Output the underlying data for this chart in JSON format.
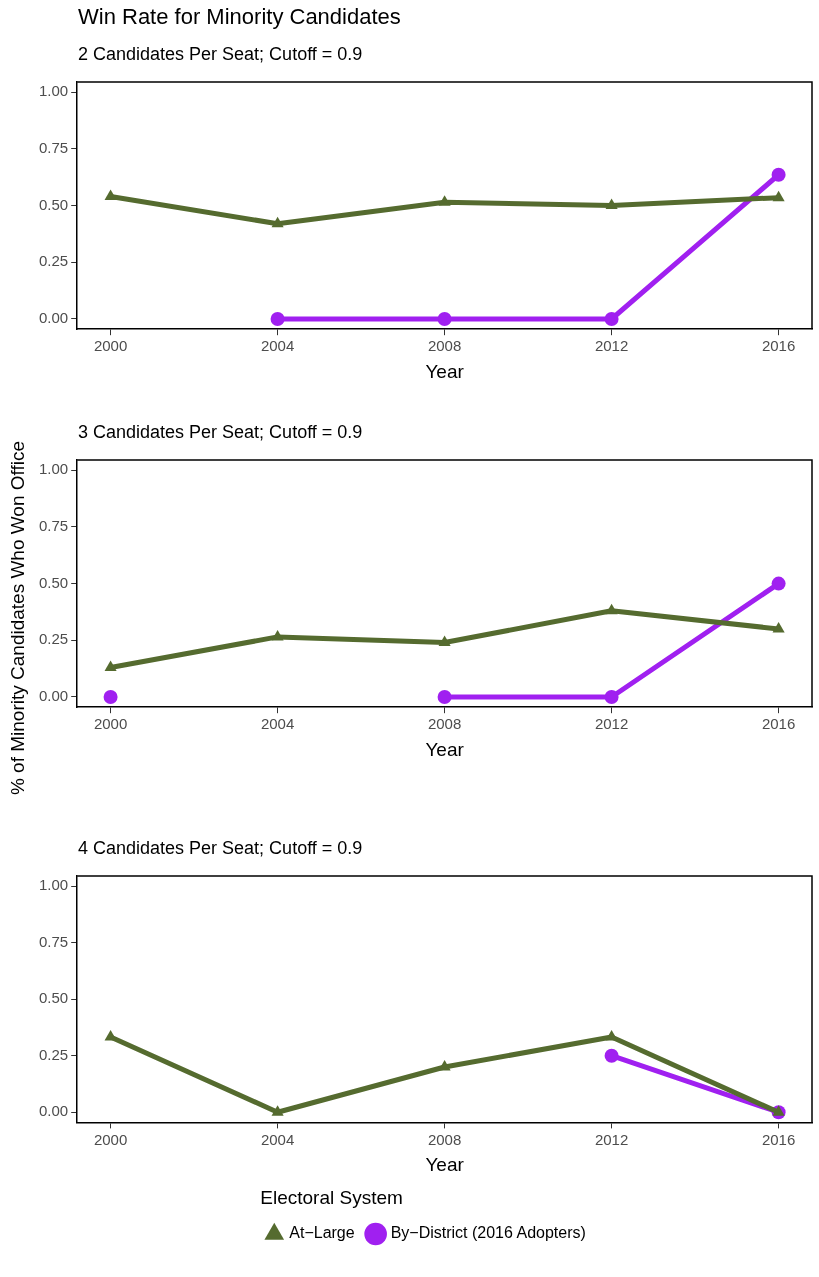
{
  "chart_data": [
    {
      "type": "line",
      "title": "Win Rate for Minority Candidates",
      "subtitle": "2 Candidates Per Seat; Cutoff = 0.9",
      "xlabel": "Year",
      "x": [
        2000,
        2004,
        2008,
        2012,
        2016
      ],
      "xlim": [
        1999.2,
        2016.8
      ],
      "xticks": [
        2000,
        2004,
        2008,
        2012,
        2016
      ],
      "ylim": [
        -0.045,
        1.045
      ],
      "yticks": [
        {
          "value": 0,
          "label": "0.00"
        },
        {
          "value": 0.25,
          "label": "0.25"
        },
        {
          "value": 0.5,
          "label": "0.50"
        },
        {
          "value": 0.75,
          "label": "0.75"
        },
        {
          "value": 1,
          "label": "1.00"
        }
      ],
      "grid": false,
      "legend": false,
      "series": [
        {
          "color": "#556b2f",
          "marker": "triangle",
          "values": [
            0.54,
            0.42,
            0.515,
            0.5,
            0.535
          ]
        },
        {
          "color": "#a020f0",
          "marker": "circle",
          "values": [
            null,
            0,
            0,
            0,
            0.636
          ]
        }
      ]
    },
    {
      "type": "line",
      "subtitle": "3 Candidates Per Seat; Cutoff = 0.9",
      "xlabel": "Year",
      "ylabel": "% of Minority Candidates Who Won Office",
      "x": [
        2000,
        2004,
        2008,
        2012,
        2016
      ],
      "xlim": [
        1999.2,
        2016.8
      ],
      "xticks": [
        2000,
        2004,
        2008,
        2012,
        2016
      ],
      "ylim": [
        -0.045,
        1.045
      ],
      "yticks": [
        {
          "value": 0,
          "label": "0.00"
        },
        {
          "value": 0.25,
          "label": "0.25"
        },
        {
          "value": 0.5,
          "label": "0.50"
        },
        {
          "value": 0.75,
          "label": "0.75"
        },
        {
          "value": 1,
          "label": "1.00"
        }
      ],
      "grid": false,
      "legend": false,
      "series": [
        {
          "color": "#556b2f",
          "marker": "triangle",
          "values": [
            0.13,
            0.265,
            0.24,
            0.38,
            0.3
          ]
        },
        {
          "color": "#a020f0",
          "marker": "circle",
          "values": [
            0,
            null,
            0,
            0,
            0.5
          ]
        }
      ]
    },
    {
      "type": "line",
      "subtitle": "4 Candidates Per Seat; Cutoff = 0.9",
      "xlabel": "Year",
      "x": [
        2000,
        2004,
        2008,
        2012,
        2016
      ],
      "xlim": [
        1999.2,
        2016.8
      ],
      "xticks": [
        2000,
        2004,
        2008,
        2012,
        2016
      ],
      "ylim": [
        -0.045,
        1.045
      ],
      "yticks": [
        {
          "value": 0,
          "label": "0.00"
        },
        {
          "value": 0.25,
          "label": "0.25"
        },
        {
          "value": 0.5,
          "label": "0.50"
        },
        {
          "value": 0.75,
          "label": "0.75"
        },
        {
          "value": 1,
          "label": "1.00"
        }
      ],
      "grid": false,
      "legend": "bottom",
      "legend_title": "Electoral System",
      "series": [
        {
          "name": "At−Large",
          "color": "#556b2f",
          "marker": "triangle",
          "values": [
            0.333,
            0,
            0.2,
            0.333,
            0
          ]
        },
        {
          "name": "By−District (2016 Adopters)",
          "color": "#a020f0",
          "marker": "circle",
          "values": [
            null,
            null,
            null,
            0.25,
            0
          ]
        }
      ]
    }
  ]
}
